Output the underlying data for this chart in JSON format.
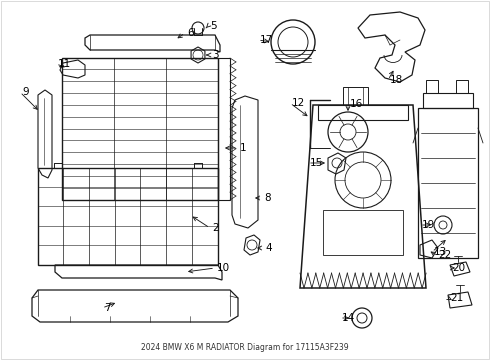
{
  "title": "2024 BMW X6 M RADIATOR Diagram for 17115A3F239",
  "bg_color": "#ffffff",
  "line_color": "#1a1a1a",
  "label_color": "#000000",
  "fig_width": 4.9,
  "fig_height": 3.6,
  "dpi": 100
}
